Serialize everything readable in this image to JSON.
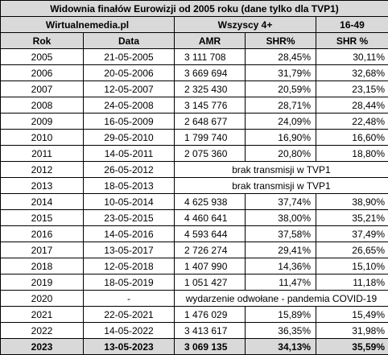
{
  "title": "Widownia finałów Eurowizji od 2005 roku (dane tylko dla TVP1)",
  "source": "Wirtualnemedia.pl",
  "group_all": "Wszyscy 4+",
  "group_age": "16-49",
  "headers": {
    "year": "Rok",
    "date": "Data",
    "amr": "AMR",
    "shr_all": "SHR%",
    "shr_age": "SHR %"
  },
  "rows": [
    {
      "year": "2005",
      "date": "21-05-2005",
      "amr": "3 111 708",
      "shr": "28,45%",
      "shr_age": "30,11%"
    },
    {
      "year": "2006",
      "date": "20-05-2006",
      "amr": "3 669 694",
      "shr": "31,79%",
      "shr_age": "32,68%"
    },
    {
      "year": "2007",
      "date": "12-05-2007",
      "amr": "2 325 430",
      "shr": "20,59%",
      "shr_age": "23,15%"
    },
    {
      "year": "2008",
      "date": "24-05-2008",
      "amr": "3 145 776",
      "shr": "28,71%",
      "shr_age": "28,44%"
    },
    {
      "year": "2009",
      "date": "16-05-2009",
      "amr": "2 648 677",
      "shr": "24,09%",
      "shr_age": "22,48%"
    },
    {
      "year": "2010",
      "date": "29-05-2010",
      "amr": "1 799 740",
      "shr": "16,90%",
      "shr_age": "16,60%"
    },
    {
      "year": "2011",
      "date": "14-05-2011",
      "amr": "2 075 360",
      "shr": "20,80%",
      "shr_age": "18,80%"
    },
    {
      "year": "2012",
      "date": "26-05-2012",
      "note": "brak transmisji w TVP1"
    },
    {
      "year": "2013",
      "date": "18-05-2013",
      "note": "brak transmisji w TVP1"
    },
    {
      "year": "2014",
      "date": "10-05-2014",
      "amr": "4 625 938",
      "shr": "37,74%",
      "shr_age": "38,90%"
    },
    {
      "year": "2015",
      "date": "23-05-2015",
      "amr": "4 460 641",
      "shr": "38,00%",
      "shr_age": "35,21%"
    },
    {
      "year": "2016",
      "date": "14-05-2016",
      "amr": "4 593 644",
      "shr": "37,58%",
      "shr_age": "37,49%"
    },
    {
      "year": "2017",
      "date": "13-05-2017",
      "amr": "2 726 274",
      "shr": "29,41%",
      "shr_age": "26,65%"
    },
    {
      "year": "2018",
      "date": "12-05-2018",
      "amr": "1 407 990",
      "shr": "14,36%",
      "shr_age": "15,10%"
    },
    {
      "year": "2019",
      "date": "18-05-2019",
      "amr": "1 051 427",
      "shr": "11,47%",
      "shr_age": "11,18%"
    },
    {
      "year": "2020",
      "date": "-",
      "note": "wydarzenie odwołane - pandemia COVID-19"
    },
    {
      "year": "2021",
      "date": "22-05-2021",
      "amr": "1 476 029",
      "shr": "15,89%",
      "shr_age": "15,49%"
    },
    {
      "year": "2022",
      "date": "14-05-2022",
      "amr": "3 413 617",
      "shr": "36,35%",
      "shr_age": "31,98%"
    },
    {
      "year": "2023",
      "date": "13-05-2023",
      "amr": "3 069 135",
      "shr": "34,13%",
      "shr_age": "35,59%",
      "highlight": true
    }
  ]
}
